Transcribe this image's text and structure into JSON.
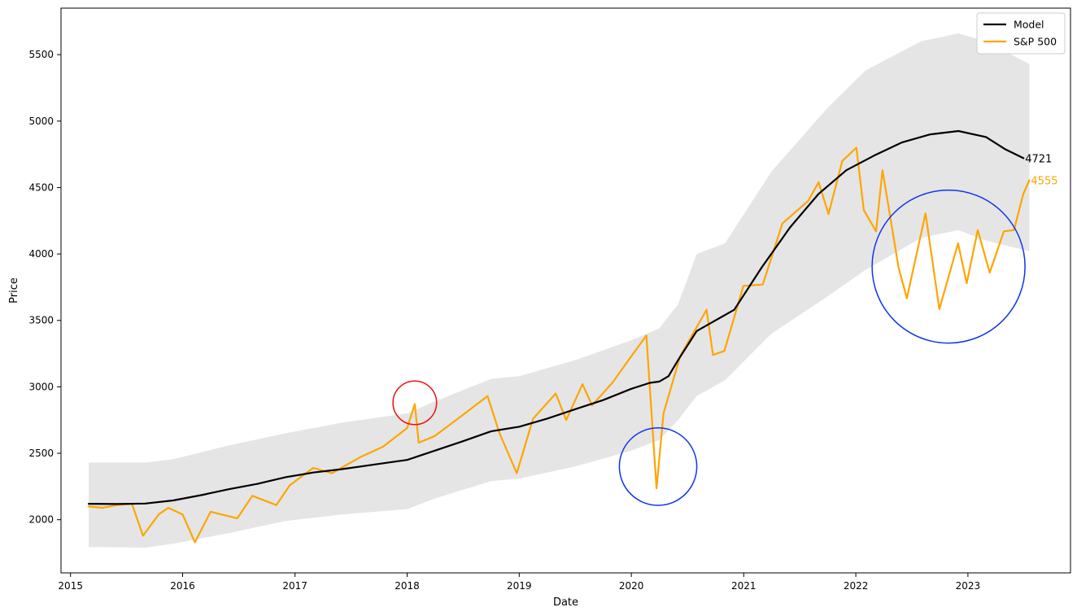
{
  "chart_data": {
    "type": "line",
    "title": "",
    "xlabel": "Date",
    "ylabel": "Price",
    "xlim": [
      "2014-12-01",
      "2023-12-01"
    ],
    "ylim": [
      1600,
      5850
    ],
    "x_ticks": [
      "2015",
      "2016",
      "2017",
      "2018",
      "2019",
      "2020",
      "2021",
      "2022",
      "2023"
    ],
    "y_ticks": [
      2000,
      2500,
      3000,
      3500,
      4000,
      4500,
      5000,
      5500
    ],
    "grid": false,
    "legend": {
      "placement": "top-right",
      "entries": [
        "Model",
        "S&P 500"
      ]
    },
    "colors": {
      "model": "#000000",
      "sp500": "#FFA500",
      "band": "#e5e5e5",
      "red_circle": "#ee1111",
      "blue_circle": "#1133ee"
    },
    "series": [
      {
        "name": "Model",
        "color": "#000000",
        "points": [
          [
            "2015-03-01",
            2120
          ],
          [
            "2015-06-01",
            2118
          ],
          [
            "2015-09-01",
            2122
          ],
          [
            "2015-12-01",
            2145
          ],
          [
            "2016-03-01",
            2185
          ],
          [
            "2016-06-01",
            2230
          ],
          [
            "2016-09-01",
            2270
          ],
          [
            "2016-12-01",
            2320
          ],
          [
            "2017-03-01",
            2355
          ],
          [
            "2017-06-01",
            2380
          ],
          [
            "2017-09-01",
            2410
          ],
          [
            "2017-12-01",
            2440
          ],
          [
            "2018-01-01",
            2450
          ],
          [
            "2018-04-01",
            2520
          ],
          [
            "2018-07-01",
            2590
          ],
          [
            "2018-10-01",
            2665
          ],
          [
            "2019-01-01",
            2700
          ],
          [
            "2019-04-01",
            2760
          ],
          [
            "2019-07-01",
            2830
          ],
          [
            "2019-10-01",
            2900
          ],
          [
            "2020-01-01",
            2985
          ],
          [
            "2020-03-01",
            3030
          ],
          [
            "2020-04-01",
            3040
          ],
          [
            "2020-05-01",
            3080
          ],
          [
            "2020-06-01",
            3200
          ],
          [
            "2020-08-01",
            3420
          ],
          [
            "2020-10-01",
            3500
          ],
          [
            "2020-12-01",
            3580
          ],
          [
            "2021-03-01",
            3900
          ],
          [
            "2021-06-01",
            4200
          ],
          [
            "2021-09-01",
            4450
          ],
          [
            "2021-12-01",
            4630
          ],
          [
            "2022-03-01",
            4740
          ],
          [
            "2022-06-01",
            4840
          ],
          [
            "2022-09-01",
            4900
          ],
          [
            "2022-12-01",
            4925
          ],
          [
            "2023-03-01",
            4880
          ],
          [
            "2023-05-01",
            4790
          ],
          [
            "2023-07-01",
            4721
          ]
        ]
      },
      {
        "name": "S&P 500",
        "color": "#FFA500",
        "points": [
          [
            "2015-03-01",
            2100
          ],
          [
            "2015-04-15",
            2090
          ],
          [
            "2015-06-01",
            2110
          ],
          [
            "2015-07-20",
            2120
          ],
          [
            "2015-08-25",
            1880
          ],
          [
            "2015-10-15",
            2040
          ],
          [
            "2015-11-15",
            2090
          ],
          [
            "2016-01-01",
            2040
          ],
          [
            "2016-02-10",
            1830
          ],
          [
            "2016-04-01",
            2060
          ],
          [
            "2016-06-27",
            2010
          ],
          [
            "2016-08-15",
            2180
          ],
          [
            "2016-11-01",
            2110
          ],
          [
            "2016-12-15",
            2260
          ],
          [
            "2017-03-01",
            2390
          ],
          [
            "2017-05-01",
            2350
          ],
          [
            "2017-08-01",
            2470
          ],
          [
            "2017-10-15",
            2550
          ],
          [
            "2018-01-01",
            2690
          ],
          [
            "2018-01-26",
            2870
          ],
          [
            "2018-02-08",
            2580
          ],
          [
            "2018-04-01",
            2630
          ],
          [
            "2018-06-15",
            2760
          ],
          [
            "2018-09-20",
            2930
          ],
          [
            "2018-10-29",
            2650
          ],
          [
            "2018-12-24",
            2350
          ],
          [
            "2019-02-15",
            2760
          ],
          [
            "2019-04-30",
            2950
          ],
          [
            "2019-06-03",
            2750
          ],
          [
            "2019-07-26",
            3020
          ],
          [
            "2019-08-26",
            2860
          ],
          [
            "2019-10-31",
            3030
          ],
          [
            "2020-01-01",
            3230
          ],
          [
            "2020-02-19",
            3386
          ],
          [
            "2020-03-23",
            2237
          ],
          [
            "2020-04-15",
            2800
          ],
          [
            "2020-06-08",
            3230
          ],
          [
            "2020-09-02",
            3580
          ],
          [
            "2020-09-23",
            3240
          ],
          [
            "2020-10-30",
            3270
          ],
          [
            "2020-12-31",
            3760
          ],
          [
            "2021-03-04",
            3770
          ],
          [
            "2021-05-07",
            4230
          ],
          [
            "2021-07-30",
            4400
          ],
          [
            "2021-09-02",
            4540
          ],
          [
            "2021-10-04",
            4300
          ],
          [
            "2021-11-18",
            4700
          ],
          [
            "2022-01-03",
            4800
          ],
          [
            "2022-01-27",
            4330
          ],
          [
            "2022-03-08",
            4170
          ],
          [
            "2022-03-29",
            4630
          ],
          [
            "2022-05-20",
            3900
          ],
          [
            "2022-06-16",
            3666
          ],
          [
            "2022-08-16",
            4305
          ],
          [
            "2022-09-30",
            3585
          ],
          [
            "2022-11-30",
            4080
          ],
          [
            "2022-12-28",
            3780
          ],
          [
            "2023-02-02",
            4180
          ],
          [
            "2023-03-13",
            3860
          ],
          [
            "2023-04-28",
            4170
          ],
          [
            "2023-05-31",
            4180
          ],
          [
            "2023-06-30",
            4450
          ],
          [
            "2023-07-20",
            4555
          ]
        ]
      }
    ],
    "band": [
      [
        "2015-03-01",
        1795,
        2430
      ],
      [
        "2015-09-01",
        1790,
        2430
      ],
      [
        "2015-12-01",
        1820,
        2455
      ],
      [
        "2016-06-01",
        1900,
        2560
      ],
      [
        "2016-12-01",
        1990,
        2650
      ],
      [
        "2017-06-01",
        2040,
        2730
      ],
      [
        "2018-01-01",
        2080,
        2800
      ],
      [
        "2018-04-01",
        2160,
        2890
      ],
      [
        "2018-10-01",
        2290,
        3060
      ],
      [
        "2019-01-01",
        2310,
        3080
      ],
      [
        "2019-07-01",
        2400,
        3200
      ],
      [
        "2020-01-01",
        2520,
        3350
      ],
      [
        "2020-04-01",
        2600,
        3440
      ],
      [
        "2020-06-01",
        2750,
        3620
      ],
      [
        "2020-08-01",
        2930,
        4000
      ],
      [
        "2020-11-01",
        3050,
        4080
      ],
      [
        "2021-04-01",
        3400,
        4620
      ],
      [
        "2021-10-01",
        3680,
        5100
      ],
      [
        "2022-02-01",
        3880,
        5380
      ],
      [
        "2022-08-01",
        4120,
        5600
      ],
      [
        "2022-12-01",
        4180,
        5660
      ],
      [
        "2023-03-01",
        4100,
        5600
      ],
      [
        "2023-07-20",
        4020,
        5430
      ]
    ],
    "end_labels": [
      {
        "text": "4721",
        "series": "Model",
        "color": "#000000"
      },
      {
        "text": "4555",
        "series": "S&P 500",
        "color": "#FFA500"
      }
    ],
    "annotations": [
      {
        "type": "circle",
        "color": "#ee1111",
        "center": [
          "2018-01-26",
          2880
        ],
        "radius_days": 71
      },
      {
        "type": "circle",
        "color": "#1133ee",
        "center": [
          "2020-03-28",
          2400
        ],
        "radius_days": 126
      },
      {
        "type": "circle",
        "color": "#1133ee",
        "center": [
          "2022-10-30",
          3905
        ],
        "radius_days": 249
      }
    ]
  }
}
